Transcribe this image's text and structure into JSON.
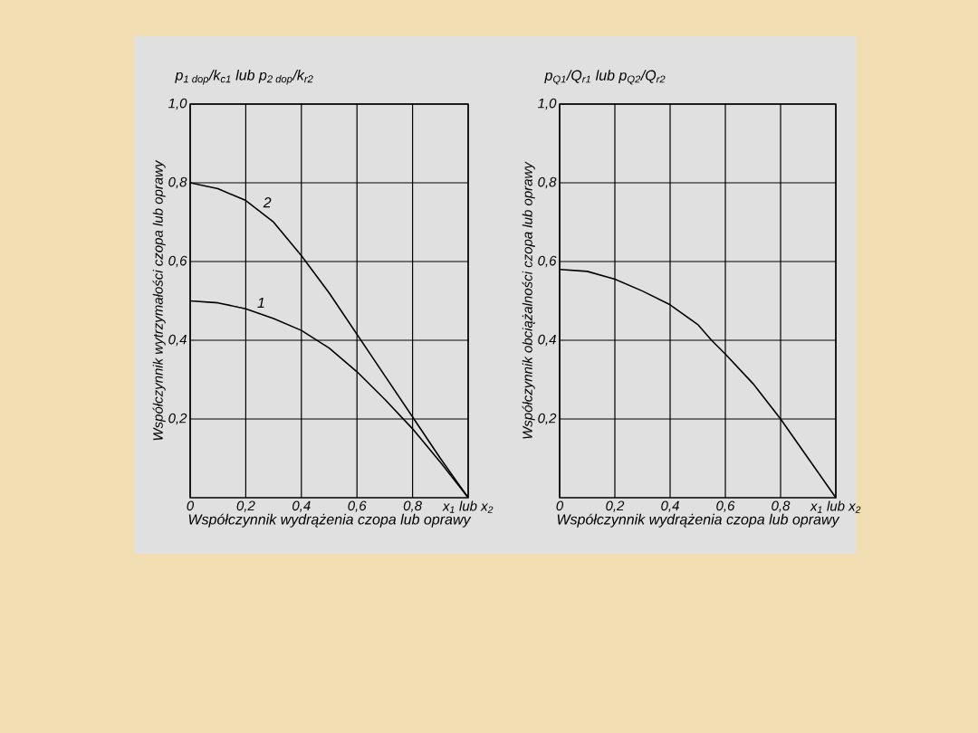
{
  "chart_data": [
    {
      "type": "line",
      "title": "p$_{1 dop}$/k$_{c1}$ lub p$_{2 dop}$/k$_{r2}$",
      "xlabel": "Współczynnik wydrążenia czopa lub oprawy",
      "ylabel": "Współczynnik wytrzymałości czopa lub oprawy",
      "x": [
        0,
        0.1,
        0.2,
        0.3,
        0.4,
        0.5,
        0.6,
        0.7,
        0.8,
        0.9,
        1.0
      ],
      "series": [
        {
          "name": "1",
          "color": "#000000",
          "values": [
            0.5,
            0.495,
            0.48,
            0.455,
            0.425,
            0.38,
            0.32,
            0.25,
            0.175,
            0.09,
            0.0
          ]
        },
        {
          "name": "2",
          "color": "#000000",
          "values": [
            0.8,
            0.785,
            0.755,
            0.7,
            0.615,
            0.52,
            0.415,
            0.31,
            0.205,
            0.1,
            0.0
          ]
        }
      ],
      "xlim": [
        0,
        1
      ],
      "ylim": [
        0,
        1
      ],
      "xticks": [
        0,
        {
          "value": 0.2,
          "label": "0,2"
        },
        {
          "value": 0.4,
          "label": "0,4"
        },
        {
          "value": 0.6,
          "label": "0,6"
        },
        {
          "value": 0.8,
          "label": "0,8"
        },
        {
          "value": 1.0,
          "label": "x$_{1}$ lub x$_{2}$"
        }
      ],
      "yticks": [
        {
          "value": 0.2,
          "label": "0,2"
        },
        {
          "value": 0.4,
          "label": "0,4"
        },
        {
          "value": 0.6,
          "label": "0,6"
        },
        {
          "value": 0.8,
          "label": "0,8"
        },
        {
          "value": 1.0,
          "label": "1,0"
        }
      ],
      "grid": true
    },
    {
      "type": "line",
      "title": "p$_{Q1}$/Q$_{r1}$ lub p$_{Q2}$/Q$_{r2}$",
      "xlabel": "Współczynnik wydrążenia czopa lub oprawy",
      "ylabel": "Współczynnik obciążalności czopa lub oprawy",
      "x": [
        0,
        0.1,
        0.2,
        0.3,
        0.4,
        0.5,
        0.55,
        0.6,
        0.7,
        0.8,
        0.9,
        1.0
      ],
      "series": [
        {
          "color": "#000000",
          "values": [
            0.58,
            0.575,
            0.555,
            0.525,
            0.49,
            0.44,
            0.4,
            0.365,
            0.29,
            0.2,
            0.1,
            0.0
          ]
        }
      ],
      "xlim": [
        0,
        1
      ],
      "ylim": [
        0,
        1
      ],
      "xticks": [
        0,
        {
          "value": 0.2,
          "label": "0,2"
        },
        {
          "value": 0.4,
          "label": "0,4"
        },
        {
          "value": 0.6,
          "label": "0,6"
        },
        {
          "value": 0.8,
          "label": "0,8"
        },
        {
          "value": 1.0,
          "label": "x$_{1}$ lub x$_{2}$"
        }
      ],
      "yticks": [
        {
          "value": 0.2,
          "label": "0,2"
        },
        {
          "value": 0.4,
          "label": "0,4"
        },
        {
          "value": 0.6,
          "label": "0,6"
        },
        {
          "value": 0.8,
          "label": "0,8"
        },
        {
          "value": 1.0,
          "label": "1,0"
        }
      ],
      "grid": true
    }
  ]
}
